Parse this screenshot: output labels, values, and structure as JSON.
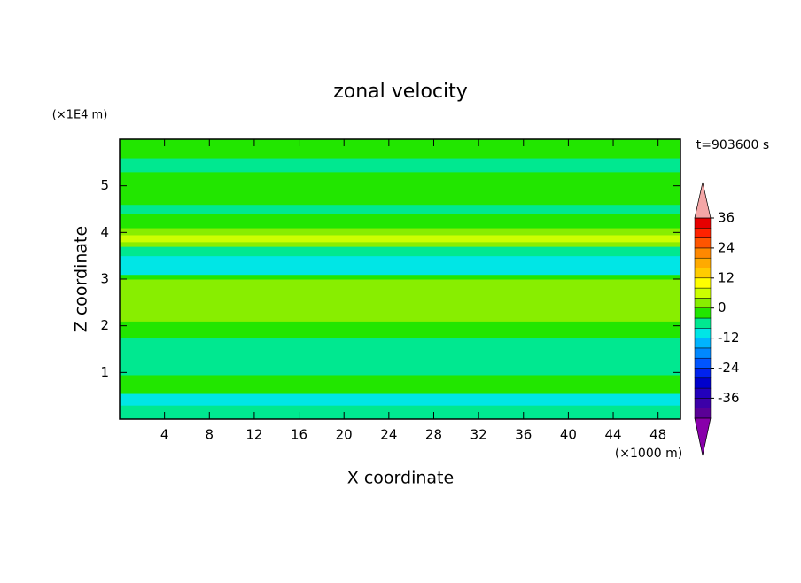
{
  "chart_data": {
    "type": "contour",
    "title": "zonal velocity",
    "xlabel": "X coordinate",
    "ylabel": "Z coordinate",
    "x_unit": "(×1000 m)",
    "y_unit": "(×1E4 m)",
    "time_label": "t=903600 s",
    "xlim": [
      0,
      50
    ],
    "xticks": [
      4,
      8,
      12,
      16,
      20,
      24,
      28,
      32,
      36,
      40,
      44,
      48
    ],
    "ylim": [
      0,
      6
    ],
    "yticks": [
      1,
      2,
      3,
      4,
      5
    ],
    "field": {
      "z": [
        0,
        0.3,
        0.55,
        0.95,
        1.2,
        1.75,
        2.1,
        2.3,
        3.0,
        3.1,
        3.5,
        3.7,
        3.8,
        3.95,
        4.1,
        4.4,
        4.6,
        5.3,
        5.6,
        6.0
      ],
      "values": [
        -2,
        -6,
        2,
        -2,
        -2,
        2,
        6,
        6,
        2,
        -6,
        -2,
        6,
        10,
        6,
        2,
        -2,
        2,
        -2,
        2
      ]
    },
    "colorbar": {
      "lim": [
        -40,
        40
      ],
      "ticks": [
        -36,
        -24,
        -12,
        0,
        12,
        24,
        36
      ],
      "colors": [
        "#5a0096",
        "#3c00a8",
        "#2200bb",
        "#0000cc",
        "#0022ee",
        "#0055ff",
        "#0088ff",
        "#00b4ff",
        "#00e6e6",
        "#00e890",
        "#22e600",
        "#88ee00",
        "#ccff00",
        "#ffff00",
        "#ffcc00",
        "#ffaa00",
        "#ff8800",
        "#ff5500",
        "#ff2200",
        "#e60000"
      ],
      "over_color": "#f4a6a6",
      "under_color": "#8800aa"
    }
  }
}
